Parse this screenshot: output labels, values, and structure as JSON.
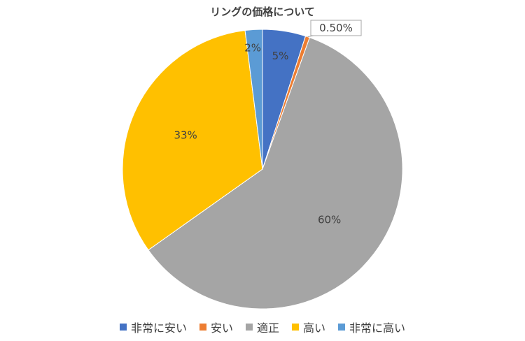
{
  "chart_data": {
    "type": "pie",
    "title": "リングの価格について",
    "categories": [
      "非常に安い",
      "安い",
      "適正",
      "高い",
      "非常に高い"
    ],
    "values": [
      5,
      0.5,
      60,
      33,
      2
    ],
    "data_labels": [
      "5%",
      "0.50%",
      "60%",
      "33%",
      "2%"
    ],
    "colors": [
      "#4472C4",
      "#ED7D31",
      "#A5A5A5",
      "#FFC000",
      "#5B9BD5"
    ],
    "legend_position": "bottom",
    "start_angle": "12 o'clock, clockwise"
  }
}
